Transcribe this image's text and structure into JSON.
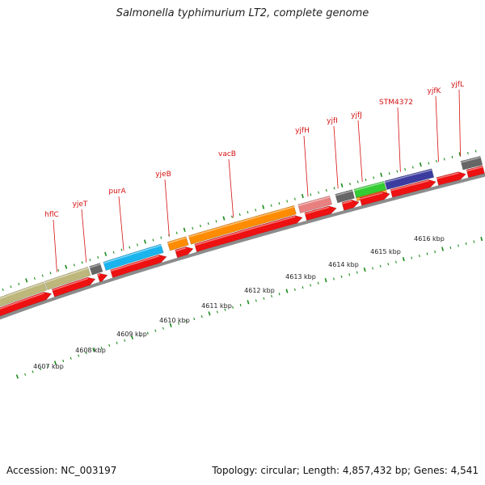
{
  "title": "Salmonella typhimurium LT2, complete genome",
  "accession": "Accession: NC_003197",
  "topology": "Topology: circular; Length: 4,857,432 bp; Genes: 4,541",
  "colors": {
    "backbone": "#8c8c8c",
    "cds_forward": "#ee1111",
    "tick": "#1a8a1a",
    "label": "#d41111",
    "gray": "#666666",
    "olive": "#bdb77b",
    "cyan": "#19b4ee",
    "orange": "#ff8c00",
    "pink": "#e88080",
    "green": "#33cc33",
    "navy": "#3c3ca0"
  },
  "gene_labels": [
    "hflC",
    "yjeT",
    "purA",
    "yjeB",
    "vacB",
    "yjfH",
    "yjfI",
    "yjfJ",
    "STM4372",
    "yjfK",
    "yjfL"
  ],
  "kbp_labels": [
    "4607 kbp",
    "4608 kbp",
    "4609 kbp",
    "4610 kbp",
    "4611 kbp",
    "4612 kbp",
    "4613 kbp",
    "4614 kbp",
    "4615 kbp",
    "4616 kbp"
  ]
}
